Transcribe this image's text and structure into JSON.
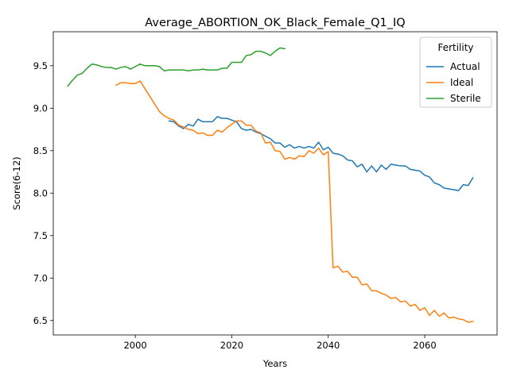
{
  "chart_data": {
    "type": "line",
    "title": "Average_ABORTION_OK_Black_Female_Q1_IQ",
    "xlabel": "Years",
    "ylabel": "Score(6-12)",
    "xlim": [
      1983,
      2075
    ],
    "ylim": [
      6.33,
      9.9
    ],
    "xticks": [
      2000,
      2020,
      2040,
      2060
    ],
    "yticks": [
      6.5,
      7.0,
      7.5,
      8.0,
      8.5,
      9.0,
      9.5
    ],
    "grid": false,
    "legend": {
      "title": "Fertility",
      "placement": "top-right"
    },
    "series": [
      {
        "name": "Actual",
        "color": "#1f77b4",
        "points": [
          [
            2007,
            8.85
          ],
          [
            2008,
            8.84
          ],
          [
            2009,
            8.79
          ],
          [
            2010,
            8.76
          ],
          [
            2011,
            8.81
          ],
          [
            2012,
            8.79
          ],
          [
            2013,
            8.87
          ],
          [
            2014,
            8.84
          ],
          [
            2015,
            8.84
          ],
          [
            2016,
            8.84
          ],
          [
            2017,
            8.9
          ],
          [
            2018,
            8.88
          ],
          [
            2019,
            8.88
          ],
          [
            2020,
            8.86
          ],
          [
            2021,
            8.84
          ],
          [
            2022,
            8.76
          ],
          [
            2023,
            8.74
          ],
          [
            2024,
            8.75
          ],
          [
            2025,
            8.72
          ],
          [
            2026,
            8.7
          ],
          [
            2027,
            8.67
          ],
          [
            2028,
            8.64
          ],
          [
            2029,
            8.59
          ],
          [
            2030,
            8.59
          ],
          [
            2031,
            8.54
          ],
          [
            2032,
            8.57
          ],
          [
            2033,
            8.53
          ],
          [
            2034,
            8.55
          ],
          [
            2035,
            8.53
          ],
          [
            2036,
            8.55
          ],
          [
            2037,
            8.53
          ],
          [
            2038,
            8.6
          ],
          [
            2039,
            8.51
          ],
          [
            2040,
            8.54
          ],
          [
            2041,
            8.47
          ],
          [
            2042,
            8.46
          ],
          [
            2043,
            8.44
          ],
          [
            2044,
            8.39
          ],
          [
            2045,
            8.38
          ],
          [
            2046,
            8.31
          ],
          [
            2047,
            8.34
          ],
          [
            2048,
            8.25
          ],
          [
            2049,
            8.32
          ],
          [
            2050,
            8.25
          ],
          [
            2051,
            8.33
          ],
          [
            2052,
            8.28
          ],
          [
            2053,
            8.34
          ],
          [
            2054,
            8.33
          ],
          [
            2055,
            8.32
          ],
          [
            2056,
            8.32
          ],
          [
            2057,
            8.28
          ],
          [
            2058,
            8.27
          ],
          [
            2059,
            8.26
          ],
          [
            2060,
            8.21
          ],
          [
            2061,
            8.19
          ],
          [
            2062,
            8.12
          ],
          [
            2063,
            8.1
          ],
          [
            2064,
            8.06
          ],
          [
            2065,
            8.05
          ],
          [
            2066,
            8.04
          ],
          [
            2067,
            8.03
          ],
          [
            2068,
            8.1
          ],
          [
            2069,
            8.09
          ],
          [
            2070,
            8.18
          ]
        ]
      },
      {
        "name": "Ideal",
        "color": "#ff7f0e",
        "points": [
          [
            1996,
            9.27
          ],
          [
            1997,
            9.3
          ],
          [
            1998,
            9.3
          ],
          [
            1999,
            9.29
          ],
          [
            2000,
            9.29
          ],
          [
            2001,
            9.32
          ],
          [
            2002,
            9.23
          ],
          [
            2003,
            9.14
          ],
          [
            2004,
            9.05
          ],
          [
            2005,
            8.96
          ],
          [
            2006,
            8.91
          ],
          [
            2007,
            8.88
          ],
          [
            2008,
            8.86
          ],
          [
            2009,
            8.8
          ],
          [
            2010,
            8.78
          ],
          [
            2011,
            8.75
          ],
          [
            2012,
            8.74
          ],
          [
            2013,
            8.7
          ],
          [
            2014,
            8.71
          ],
          [
            2015,
            8.68
          ],
          [
            2016,
            8.68
          ],
          [
            2017,
            8.74
          ],
          [
            2018,
            8.72
          ],
          [
            2019,
            8.77
          ],
          [
            2020,
            8.81
          ],
          [
            2021,
            8.85
          ],
          [
            2022,
            8.85
          ],
          [
            2023,
            8.8
          ],
          [
            2024,
            8.8
          ],
          [
            2025,
            8.73
          ],
          [
            2026,
            8.71
          ],
          [
            2027,
            8.59
          ],
          [
            2028,
            8.6
          ],
          [
            2029,
            8.5
          ],
          [
            2030,
            8.49
          ],
          [
            2031,
            8.4
          ],
          [
            2032,
            8.42
          ],
          [
            2033,
            8.4
          ],
          [
            2034,
            8.44
          ],
          [
            2035,
            8.43
          ],
          [
            2036,
            8.5
          ],
          [
            2037,
            8.47
          ],
          [
            2038,
            8.53
          ],
          [
            2039,
            8.45
          ],
          [
            2040,
            8.49
          ],
          [
            2041,
            7.12
          ],
          [
            2042,
            7.14
          ],
          [
            2043,
            7.07
          ],
          [
            2044,
            7.08
          ],
          [
            2045,
            7.01
          ],
          [
            2046,
            7.01
          ],
          [
            2047,
            6.92
          ],
          [
            2048,
            6.93
          ],
          [
            2049,
            6.85
          ],
          [
            2050,
            6.85
          ],
          [
            2051,
            6.82
          ],
          [
            2052,
            6.8
          ],
          [
            2053,
            6.76
          ],
          [
            2054,
            6.77
          ],
          [
            2055,
            6.72
          ],
          [
            2056,
            6.73
          ],
          [
            2057,
            6.67
          ],
          [
            2058,
            6.69
          ],
          [
            2059,
            6.62
          ],
          [
            2060,
            6.65
          ],
          [
            2061,
            6.56
          ],
          [
            2062,
            6.62
          ],
          [
            2063,
            6.55
          ],
          [
            2064,
            6.59
          ],
          [
            2065,
            6.53
          ],
          [
            2066,
            6.54
          ],
          [
            2067,
            6.52
          ],
          [
            2068,
            6.51
          ],
          [
            2069,
            6.48
          ],
          [
            2070,
            6.49
          ]
        ]
      },
      {
        "name": "Sterile",
        "color": "#2ca02c",
        "points": [
          [
            1986,
            9.26
          ],
          [
            1987,
            9.33
          ],
          [
            1988,
            9.39
          ],
          [
            1989,
            9.41
          ],
          [
            1990,
            9.47
          ],
          [
            1991,
            9.52
          ],
          [
            1992,
            9.51
          ],
          [
            1993,
            9.49
          ],
          [
            1994,
            9.48
          ],
          [
            1995,
            9.48
          ],
          [
            1996,
            9.46
          ],
          [
            1997,
            9.48
          ],
          [
            1998,
            9.49
          ],
          [
            1999,
            9.46
          ],
          [
            2000,
            9.49
          ],
          [
            2001,
            9.52
          ],
          [
            2002,
            9.5
          ],
          [
            2003,
            9.5
          ],
          [
            2004,
            9.5
          ],
          [
            2005,
            9.49
          ],
          [
            2006,
            9.44
          ],
          [
            2007,
            9.45
          ],
          [
            2008,
            9.45
          ],
          [
            2009,
            9.45
          ],
          [
            2010,
            9.45
          ],
          [
            2011,
            9.44
          ],
          [
            2012,
            9.45
          ],
          [
            2013,
            9.45
          ],
          [
            2014,
            9.46
          ],
          [
            2015,
            9.45
          ],
          [
            2016,
            9.45
          ],
          [
            2017,
            9.45
          ],
          [
            2018,
            9.47
          ],
          [
            2019,
            9.47
          ],
          [
            2020,
            9.54
          ],
          [
            2021,
            9.54
          ],
          [
            2022,
            9.54
          ],
          [
            2023,
            9.62
          ],
          [
            2024,
            9.63
          ],
          [
            2025,
            9.67
          ],
          [
            2026,
            9.67
          ],
          [
            2027,
            9.65
          ],
          [
            2028,
            9.62
          ],
          [
            2029,
            9.67
          ],
          [
            2030,
            9.71
          ],
          [
            2031,
            9.7
          ]
        ]
      }
    ]
  }
}
